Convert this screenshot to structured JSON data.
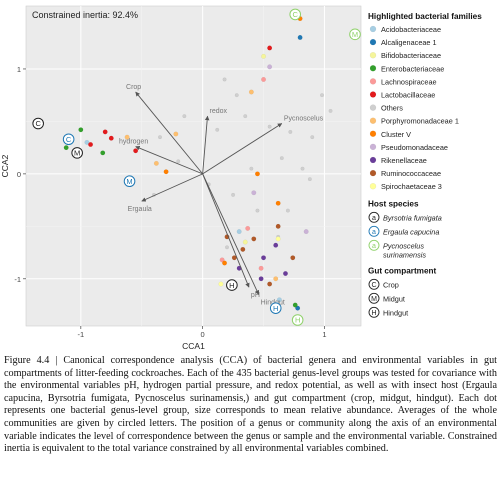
{
  "chart_data": {
    "type": "scatter",
    "title": "",
    "xlabel": "CCA1",
    "ylabel": "CCA2",
    "annotation": "Constrained inertia: 92.4%",
    "xlim": [
      -1.45,
      1.3
    ],
    "ylim": [
      -1.45,
      1.6
    ],
    "x_ticks": [
      -1,
      0,
      1
    ],
    "y_ticks": [
      -1,
      0,
      1
    ],
    "x_tick_labels": [
      "-1",
      "0",
      "1"
    ],
    "y_tick_labels": [
      "-1",
      "0",
      "1"
    ],
    "grid": true,
    "legend_position": "right",
    "environmental_vectors": [
      {
        "label": "Crop",
        "x": -0.55,
        "y": 0.78
      },
      {
        "label": "redox",
        "x": 0.04,
        "y": 0.55
      },
      {
        "label": "Pycnoscelus",
        "x": 0.65,
        "y": 0.48
      },
      {
        "label": "hydrogen",
        "x": -0.55,
        "y": 0.26
      },
      {
        "label": "Ergaula",
        "x": -0.5,
        "y": -0.26
      },
      {
        "label": "pH",
        "x": 0.38,
        "y": -1.08
      },
      {
        "label": "Hindgut",
        "x": 0.46,
        "y": -1.15
      }
    ],
    "centroids": [
      {
        "letter": "C",
        "x": -1.35,
        "y": 0.48,
        "group": "Crop"
      },
      {
        "letter": "C",
        "x": -1.1,
        "y": 0.33,
        "group": "Ergaula capucina"
      },
      {
        "letter": "M",
        "x": -1.03,
        "y": 0.2,
        "group": "Midgut"
      },
      {
        "letter": "M",
        "x": -0.6,
        "y": -0.07,
        "group": "Ergaula capucina"
      },
      {
        "letter": "M",
        "x": 1.65,
        "y": 1.33,
        "group": "Pycnoscelus surinamensis"
      },
      {
        "letter": "C",
        "x": 0.76,
        "y": 1.52,
        "group": "Pycnoscelus surinamensis"
      },
      {
        "letter": "H",
        "x": 0.24,
        "y": -1.06,
        "group": "Hindgut"
      },
      {
        "letter": "H",
        "x": 0.6,
        "y": -1.28,
        "group": "Ergaula capucina"
      },
      {
        "letter": "H",
        "x": 0.78,
        "y": -1.4,
        "group": "Pycnoscelus surinamensis"
      }
    ],
    "series": [
      {
        "name": "Acidobacteriaceae",
        "color": "#a6cee3",
        "points": [
          [
            -0.95,
            0.3
          ],
          [
            0.63,
            -1.2
          ],
          [
            0.3,
            -0.55
          ]
        ]
      },
      {
        "name": "Alcaligenaceae  1",
        "color": "#1f78b4",
        "points": [
          [
            0.8,
            1.3
          ],
          [
            0.78,
            -1.28
          ]
        ]
      },
      {
        "name": "Bifidobacteriaceae",
        "color": "#f5f59b",
        "points": [
          [
            0.5,
            1.12
          ],
          [
            0.35,
            -0.65
          ]
        ]
      },
      {
        "name": "Enterobacteriaceae",
        "color": "#33a02c",
        "points": [
          [
            -1.12,
            0.25
          ],
          [
            -0.82,
            0.2
          ],
          [
            -1.0,
            0.42
          ],
          [
            0.76,
            -1.25
          ]
        ]
      },
      {
        "name": "Lachnospiraceae",
        "color": "#fb9a99",
        "points": [
          [
            0.37,
            -0.52
          ],
          [
            0.16,
            -0.82
          ],
          [
            0.48,
            -0.9
          ],
          [
            0.5,
            0.9
          ]
        ]
      },
      {
        "name": "Lactobacillaceae",
        "color": "#e31a1c",
        "points": [
          [
            -0.8,
            0.4
          ],
          [
            -0.92,
            0.28
          ],
          [
            -0.75,
            0.34
          ],
          [
            0.55,
            1.2
          ],
          [
            -0.55,
            0.22
          ]
        ]
      },
      {
        "name": "Others",
        "color": "#cfcfcf",
        "points": [
          [
            -0.35,
            0.35
          ],
          [
            0.18,
            0.9
          ],
          [
            0.28,
            0.75
          ],
          [
            0.35,
            0.55
          ],
          [
            0.55,
            0.45
          ],
          [
            0.72,
            0.4
          ],
          [
            0.9,
            0.35
          ],
          [
            -0.2,
            0.12
          ],
          [
            0.05,
            -0.1
          ],
          [
            0.25,
            -0.2
          ],
          [
            0.45,
            -0.35
          ],
          [
            0.65,
            0.15
          ],
          [
            0.82,
            0.05
          ],
          [
            -0.4,
            -0.2
          ],
          [
            0.12,
            0.42
          ],
          [
            0.88,
            -0.05
          ],
          [
            0.62,
            -0.6
          ],
          [
            0.2,
            -0.7
          ],
          [
            -0.15,
            0.55
          ],
          [
            1.05,
            0.6
          ],
          [
            0.98,
            0.75
          ],
          [
            0.4,
            0.05
          ],
          [
            0.7,
            -0.35
          ]
        ]
      },
      {
        "name": "Porphyromonadaceae  1",
        "color": "#fdbf6f",
        "points": [
          [
            -0.62,
            0.35
          ],
          [
            -0.22,
            0.38
          ],
          [
            -0.38,
            0.1
          ],
          [
            0.6,
            -1.0
          ],
          [
            0.4,
            0.78
          ]
        ]
      },
      {
        "name": "Cluster V",
        "color": "#ff7f00",
        "points": [
          [
            -0.3,
            0.02
          ],
          [
            0.18,
            -0.85
          ],
          [
            0.45,
            0.0
          ],
          [
            0.62,
            -0.28
          ],
          [
            0.8,
            1.48
          ]
        ]
      },
      {
        "name": "Pseudomonadaceae",
        "color": "#cab2d6",
        "points": [
          [
            0.55,
            1.02
          ],
          [
            0.42,
            -0.18
          ],
          [
            0.85,
            -0.55
          ]
        ]
      },
      {
        "name": "Rikenellaceae",
        "color": "#6a3d9a",
        "points": [
          [
            0.5,
            -0.8
          ],
          [
            0.3,
            -0.9
          ],
          [
            0.48,
            -1.0
          ],
          [
            0.6,
            -0.68
          ],
          [
            0.68,
            -0.95
          ]
        ]
      },
      {
        "name": "Ruminococcaceae",
        "color": "#b15928",
        "points": [
          [
            0.26,
            -0.8
          ],
          [
            0.33,
            -0.72
          ],
          [
            0.42,
            -0.62
          ],
          [
            0.62,
            -0.5
          ],
          [
            0.55,
            -1.05
          ],
          [
            0.2,
            -0.6
          ],
          [
            0.74,
            -0.8
          ]
        ]
      },
      {
        "name": "Spirochaetaceae  3",
        "color": "#ffff99",
        "points": [
          [
            0.15,
            -1.05
          ],
          [
            0.62,
            -0.62
          ]
        ]
      }
    ],
    "legend": {
      "families_title": "Highlighted bacterial families",
      "families": [
        {
          "label": "Acidobacteriaceae",
          "color": "#a6cee3"
        },
        {
          "label": "Alcaligenaceae  1",
          "color": "#1f78b4"
        },
        {
          "label": "Bifidobacteriaceae",
          "color": "#f5f59b"
        },
        {
          "label": "Enterobacteriaceae",
          "color": "#33a02c"
        },
        {
          "label": "Lachnospiraceae",
          "color": "#fb9a99"
        },
        {
          "label": "Lactobacillaceae",
          "color": "#e31a1c"
        },
        {
          "label": "Others",
          "color": "#cfcfcf"
        },
        {
          "label": "Porphyromonadaceae  1",
          "color": "#fdbf6f"
        },
        {
          "label": "Cluster V",
          "color": "#ff7f00"
        },
        {
          "label": "Pseudomonadaceae",
          "color": "#cab2d6"
        },
        {
          "label": "Rikenellaceae",
          "color": "#6a3d9a"
        },
        {
          "label": "Ruminococcaceae",
          "color": "#b15928"
        },
        {
          "label": "Spirochaetaceae  3",
          "color": "#ffff99"
        }
      ],
      "host_title": "Host species",
      "hosts": [
        {
          "letter": "a",
          "label1": "Byrsotria fumigata",
          "label2": "",
          "color": "#222222"
        },
        {
          "letter": "a",
          "label1": "Ergaula capucina",
          "label2": "",
          "color": "#1f78b4"
        },
        {
          "letter": "a",
          "label1": "Pycnoscelus",
          "label2": "surinamensis",
          "color": "#8fd16a"
        }
      ],
      "compartment_title": "Gut compartment",
      "compartments": [
        {
          "letter": "C",
          "label": "Crop"
        },
        {
          "letter": "M",
          "label": "Midgut"
        },
        {
          "letter": "H",
          "label": "Hindgut"
        }
      ]
    }
  },
  "caption": {
    "figure_label": "Figure 4.4 |",
    "text": "Canonical correspondence analysis (CCA) of bacterial genera and environmental variables in gut compartments of litter-feeding cockroaches. Each of the 435 bacterial genus-level groups was tested for covariance with the environmental variables pH, hydrogen partial pressure, and redox potential, as well as with insect host (Ergaula capucina, Byrsotria fumigata, Pycnoscelus surinamensis,) and gut compartment (crop, midgut, hindgut). Each dot represents one bacterial genus-level group, size corresponds to mean relative abundance. Averages of the whole communities are given by circled letters. The position of a genus or community along the axis of an environmental variable indicates the level of correspondence between the genus or sample and the environmental variable. Constrained inertia is equivalent to the total variance constrained by all environmental variables combined."
  }
}
